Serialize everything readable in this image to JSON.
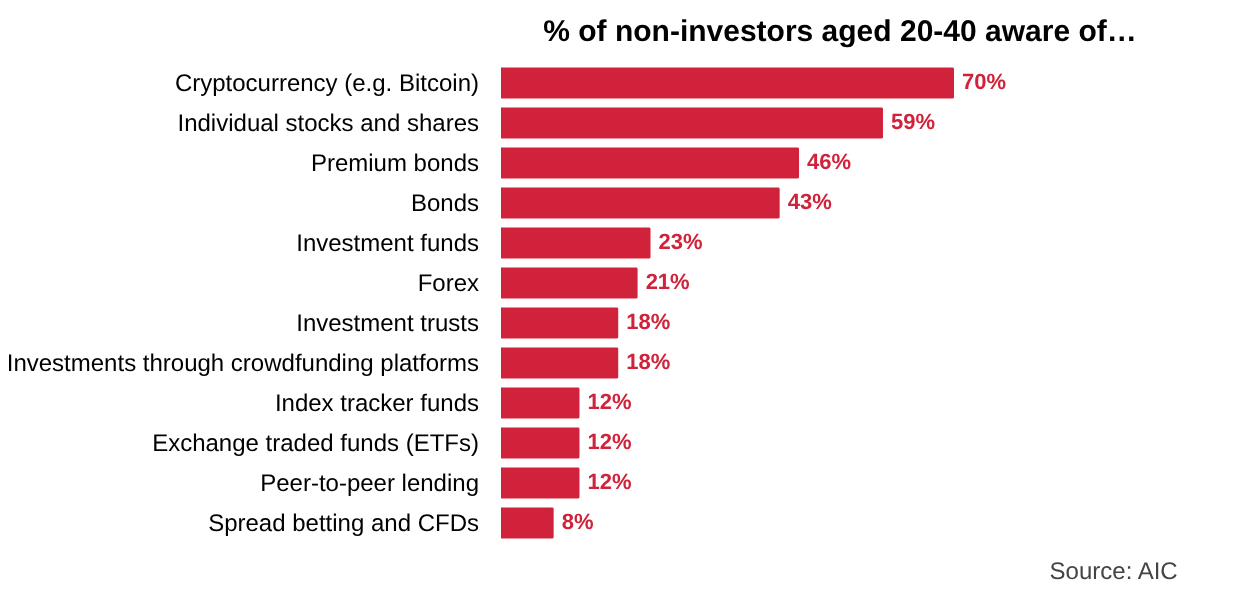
{
  "chart_data": {
    "type": "bar",
    "orientation": "horizontal",
    "title": "% of non-investors aged 20-40 aware of…",
    "categories": [
      "Cryptocurrency (e.g. Bitcoin)",
      "Individual stocks and shares",
      "Premium bonds",
      "Bonds",
      "Investment funds",
      "Forex",
      "Investment trusts",
      "Investments through crowdfunding platforms",
      "Index tracker funds",
      "Exchange traded funds (ETFs)",
      "Peer-to-peer lending",
      "Spread betting and CFDs"
    ],
    "values": [
      70,
      59,
      46,
      43,
      23,
      21,
      18,
      18,
      12,
      12,
      12,
      8
    ],
    "value_labels": [
      "70%",
      "59%",
      "46%",
      "43%",
      "23%",
      "21%",
      "18%",
      "18%",
      "12%",
      "12%",
      "12%",
      "8%"
    ],
    "color": "#d0223a",
    "grid": false,
    "annotations": [
      "Source: AIC"
    ]
  }
}
